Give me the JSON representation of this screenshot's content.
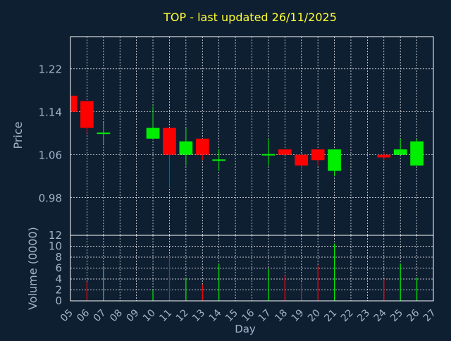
{
  "colors": {
    "background": "#0f1f32",
    "axis": "#ffffff",
    "grid": "#ffffff",
    "title": "#ffff33",
    "labels": "#a0b4c8",
    "ticks": "#a0b4c8",
    "up": "#00ee00",
    "down": "#ff0000"
  },
  "chart_data": [
    {
      "type": "candlestick",
      "title": "TOP - last updated 26/11/2025",
      "ylabel": "Price",
      "ylim": [
        0.91,
        1.28
      ],
      "yticks": [
        0.98,
        1.06,
        1.14,
        1.22
      ],
      "ytick_labels": [
        "0.98",
        "1.06",
        "1.14",
        "1.22"
      ],
      "grid": true,
      "candles": [
        {
          "day": "05",
          "open": 1.17,
          "high": 1.17,
          "low": 1.14,
          "close": 1.14
        },
        {
          "day": "06",
          "open": 1.16,
          "high": 1.16,
          "low": 1.1,
          "close": 1.11
        },
        {
          "day": "07",
          "open": 1.1,
          "high": 1.12,
          "low": 1.08,
          "close": 1.1
        },
        {
          "day": "10",
          "open": 1.09,
          "high": 1.15,
          "low": 1.09,
          "close": 1.11
        },
        {
          "day": "11",
          "open": 1.11,
          "high": 1.11,
          "low": 1.0,
          "close": 1.06
        },
        {
          "day": "12",
          "open": 1.06,
          "high": 1.11,
          "low": 1.04,
          "close": 1.085
        },
        {
          "day": "13",
          "open": 1.09,
          "high": 1.09,
          "low": 1.05,
          "close": 1.06
        },
        {
          "day": "14",
          "open": 1.05,
          "high": 1.07,
          "low": 1.03,
          "close": 1.05
        },
        {
          "day": "17",
          "open": 1.06,
          "high": 1.09,
          "low": 1.04,
          "close": 1.06
        },
        {
          "day": "18",
          "open": 1.07,
          "high": 1.07,
          "low": 1.06,
          "close": 1.06
        },
        {
          "day": "19",
          "open": 1.06,
          "high": 1.06,
          "low": 1.03,
          "close": 1.04
        },
        {
          "day": "20",
          "open": 1.07,
          "high": 1.07,
          "low": 1.04,
          "close": 1.05
        },
        {
          "day": "21",
          "open": 1.03,
          "high": 1.07,
          "low": 1.02,
          "close": 1.07
        },
        {
          "day": "24",
          "open": 1.06,
          "high": 1.065,
          "low": 1.05,
          "close": 1.055
        },
        {
          "day": "25",
          "open": 1.06,
          "high": 1.09,
          "low": 1.06,
          "close": 1.07
        },
        {
          "day": "26",
          "open": 1.04,
          "high": 1.09,
          "low": 1.04,
          "close": 1.085
        }
      ]
    },
    {
      "type": "bar",
      "ylabel": "Volume (0000)",
      "xlabel": "Day",
      "ylim": [
        0,
        12
      ],
      "yticks": [
        0,
        2,
        4,
        6,
        8,
        10,
        12
      ],
      "ytick_labels": [
        "0",
        "2",
        "4",
        "6",
        "8",
        "10",
        "12"
      ],
      "grid": true,
      "x_ticks": [
        "05",
        "06",
        "07",
        "08",
        "09",
        "10",
        "11",
        "12",
        "13",
        "14",
        "15",
        "16",
        "17",
        "18",
        "19",
        "20",
        "21",
        "22",
        "23",
        "24",
        "25",
        "26",
        "27"
      ],
      "volumes": [
        {
          "day": "06",
          "value": 3.5,
          "direction": "down"
        },
        {
          "day": "07",
          "value": 6.0,
          "direction": "up"
        },
        {
          "day": "10",
          "value": 2.0,
          "direction": "up"
        },
        {
          "day": "11",
          "value": 8.3,
          "direction": "down"
        },
        {
          "day": "12",
          "value": 4.2,
          "direction": "up"
        },
        {
          "day": "13",
          "value": 3.0,
          "direction": "down"
        },
        {
          "day": "14",
          "value": 6.8,
          "direction": "up"
        },
        {
          "day": "17",
          "value": 5.8,
          "direction": "up"
        },
        {
          "day": "18",
          "value": 4.6,
          "direction": "down"
        },
        {
          "day": "19",
          "value": 3.3,
          "direction": "down"
        },
        {
          "day": "20",
          "value": 6.5,
          "direction": "down"
        },
        {
          "day": "21",
          "value": 10.5,
          "direction": "up"
        },
        {
          "day": "24",
          "value": 4.0,
          "direction": "down"
        },
        {
          "day": "25",
          "value": 6.8,
          "direction": "up"
        },
        {
          "day": "26",
          "value": 4.3,
          "direction": "up"
        }
      ]
    }
  ]
}
